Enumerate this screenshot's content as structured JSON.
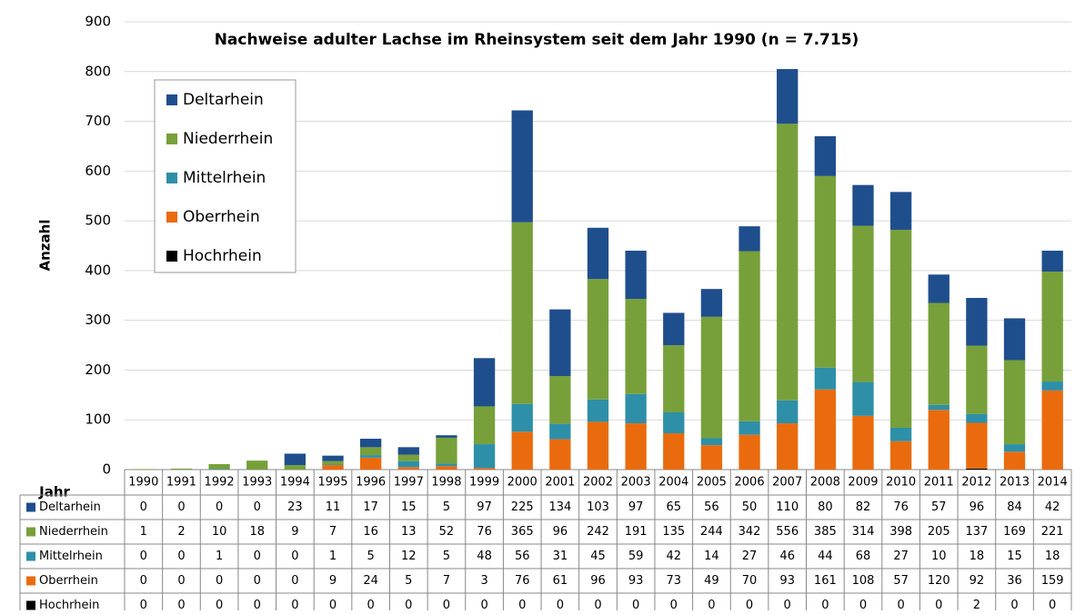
{
  "chart_data": {
    "type": "stacked-bar",
    "title": "Nachweise adulter Lachse im Rheinsystem seit dem Jahr 1990 (n = 7.715)",
    "y_label": "Anzahl",
    "x_label": "Jahr",
    "categories": [
      "1990",
      "1991",
      "1992",
      "1993",
      "1994",
      "1995",
      "1996",
      "1997",
      "1998",
      "1999",
      "2000",
      "2001",
      "2002",
      "2003",
      "2004",
      "2005",
      "2006",
      "2007",
      "2008",
      "2009",
      "2010",
      "2011",
      "2012",
      "2013",
      "2014"
    ],
    "series": [
      {
        "name": "Deltarhein",
        "color": "#1f4e8c",
        "values": [
          0,
          0,
          0,
          0,
          23,
          11,
          17,
          15,
          5,
          97,
          225,
          134,
          103,
          97,
          65,
          56,
          50,
          110,
          80,
          82,
          76,
          57,
          96,
          84,
          42
        ]
      },
      {
        "name": "Niederrhein",
        "color": "#77a03a",
        "values": [
          1,
          2,
          10,
          18,
          9,
          7,
          16,
          13,
          52,
          76,
          365,
          96,
          242,
          191,
          135,
          244,
          342,
          556,
          385,
          314,
          398,
          205,
          137,
          169,
          221
        ]
      },
      {
        "name": "Mittelrhein",
        "color": "#2e8fa8",
        "values": [
          0,
          0,
          1,
          0,
          0,
          1,
          5,
          12,
          5,
          48,
          56,
          31,
          45,
          59,
          42,
          14,
          27,
          46,
          44,
          68,
          27,
          10,
          18,
          15,
          18
        ]
      },
      {
        "name": "Oberrhein",
        "color": "#ea6b0d",
        "values": [
          0,
          0,
          0,
          0,
          0,
          9,
          24,
          5,
          7,
          3,
          76,
          61,
          96,
          93,
          73,
          49,
          70,
          93,
          161,
          108,
          57,
          120,
          92,
          36,
          159
        ]
      },
      {
        "name": "Hochrhein",
        "color": "#000000",
        "values": [
          0,
          0,
          0,
          0,
          0,
          0,
          0,
          0,
          0,
          0,
          0,
          0,
          0,
          0,
          0,
          0,
          0,
          0,
          0,
          0,
          0,
          0,
          2,
          0,
          0
        ]
      }
    ],
    "ylim": [
      0,
      900
    ],
    "yticks": [
      0,
      100,
      200,
      300,
      400,
      500,
      600,
      700,
      800,
      900
    ],
    "grid": true
  }
}
